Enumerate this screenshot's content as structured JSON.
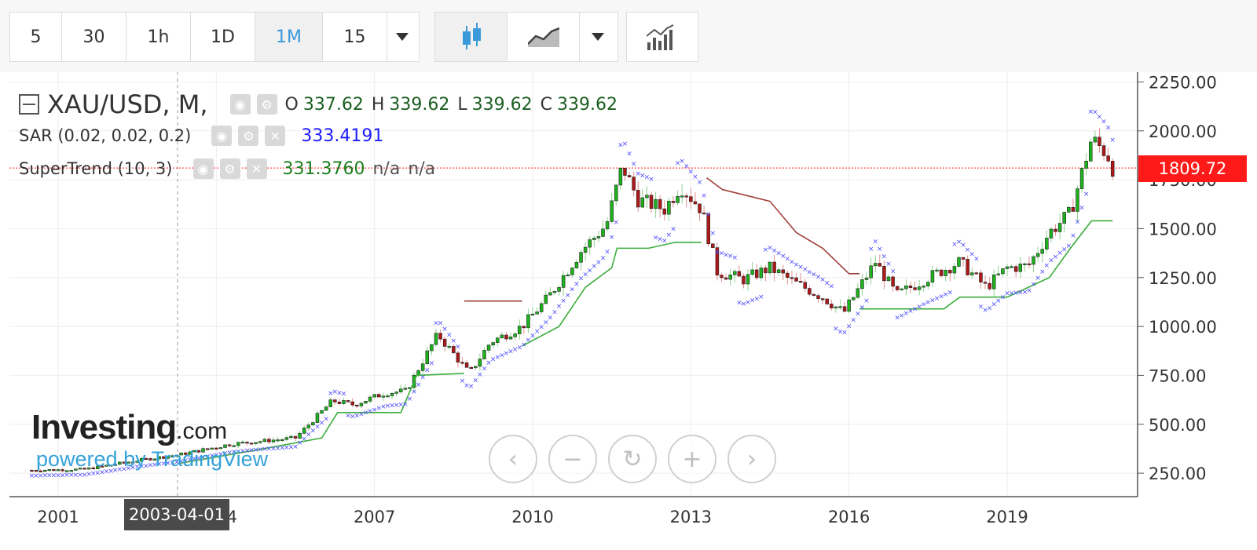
{
  "toolbar": {
    "intervals": [
      "5",
      "30",
      "1h",
      "1D",
      "1M",
      "15"
    ],
    "active_interval": "1M"
  },
  "legend": {
    "symbol": "XAU/USD, M,",
    "o_label": "O",
    "o": "337.62",
    "h_label": "H",
    "h": "339.62",
    "l_label": "L",
    "l": "339.62",
    "c_label": "C",
    "c": "339.62",
    "sar_label": "SAR (0.02, 0.02, 0.2)",
    "sar_value": "333.4191",
    "st_label": "SuperTrend (10, 3)",
    "st_value": "331.3760",
    "st_na1": "n/a",
    "st_na2": "n/a"
  },
  "brand": {
    "name": "Investing",
    "com": ".com",
    "powered": "powered by TradingView"
  },
  "crosshair_date": "2003-04-01",
  "price_tag": "1809.72",
  "colors": {
    "up": "#1db31d",
    "down": "#b01818",
    "sar": "#4a4aff",
    "st_up": "#3cae3c",
    "st_down": "#a0403a",
    "price_line": "#ff1a1a"
  },
  "chart_data": {
    "type": "candlestick",
    "symbol": "XAU/USD",
    "interval": "M",
    "x_ticks": [
      "2001",
      "2004",
      "2007",
      "2010",
      "2013",
      "2016",
      "2019"
    ],
    "y_ticks": [
      "250.00",
      "500.00",
      "750.00",
      "1000.00",
      "1250.00",
      "1500.00",
      "1750.00",
      "2000.00",
      "2250.00"
    ],
    "ylim": [
      130,
      2300
    ],
    "xlim": [
      2000.5,
      2021.5
    ],
    "anchors": [
      [
        2000.5,
        265
      ],
      [
        2001.5,
        270
      ],
      [
        2002.5,
        315
      ],
      [
        2003.3,
        345
      ],
      [
        2004.3,
        400
      ],
      [
        2005.5,
        430
      ],
      [
        2006.2,
        620
      ],
      [
        2006.6,
        600
      ],
      [
        2007.2,
        660
      ],
      [
        2007.6,
        670
      ],
      [
        2008.2,
        960
      ],
      [
        2008.8,
        760
      ],
      [
        2009.2,
        920
      ],
      [
        2009.8,
        1000
      ],
      [
        2010.3,
        1150
      ],
      [
        2010.9,
        1380
      ],
      [
        2011.4,
        1520
      ],
      [
        2011.7,
        1820
      ],
      [
        2012.0,
        1650
      ],
      [
        2012.5,
        1600
      ],
      [
        2012.8,
        1720
      ],
      [
        2013.2,
        1600
      ],
      [
        2013.5,
        1280
      ],
      [
        2014.0,
        1240
      ],
      [
        2014.5,
        1300
      ],
      [
        2015.0,
        1220
      ],
      [
        2015.5,
        1150
      ],
      [
        2015.9,
        1070
      ],
      [
        2016.5,
        1330
      ],
      [
        2016.9,
        1160
      ],
      [
        2017.5,
        1250
      ],
      [
        2018.1,
        1330
      ],
      [
        2018.6,
        1200
      ],
      [
        2019.0,
        1300
      ],
      [
        2019.4,
        1310
      ],
      [
        2019.8,
        1480
      ],
      [
        2020.2,
        1580
      ],
      [
        2020.6,
        1960
      ],
      [
        2020.9,
        1880
      ],
      [
        2021.0,
        1810
      ]
    ],
    "supertrend_up": [
      [
        2003.3,
        300
      ],
      [
        2005.0,
        380
      ],
      [
        2006.0,
        430
      ],
      [
        2006.3,
        560
      ],
      [
        2007.5,
        560
      ],
      [
        2007.8,
        750
      ],
      [
        2008.7,
        760
      ]
    ],
    "supertrend_down": [
      [
        2008.7,
        1130
      ],
      [
        2009.8,
        1130
      ]
    ],
    "supertrend_up2": [
      [
        2009.8,
        900
      ],
      [
        2010.5,
        1000
      ],
      [
        2011.0,
        1200
      ],
      [
        2011.5,
        1300
      ],
      [
        2011.6,
        1400
      ],
      [
        2012.2,
        1400
      ],
      [
        2012.7,
        1430
      ],
      [
        2013.2,
        1430
      ]
    ],
    "supertrend_down2": [
      [
        2013.3,
        1760
      ],
      [
        2013.6,
        1700
      ],
      [
        2014.5,
        1640
      ],
      [
        2015.0,
        1480
      ],
      [
        2015.5,
        1400
      ],
      [
        2016.0,
        1270
      ],
      [
        2016.2,
        1270
      ]
    ],
    "supertrend_up3": [
      [
        2016.2,
        1090
      ],
      [
        2016.8,
        1090
      ],
      [
        2017.8,
        1090
      ],
      [
        2018.1,
        1150
      ],
      [
        2019.0,
        1150
      ],
      [
        2019.4,
        1200
      ],
      [
        2019.8,
        1250
      ],
      [
        2020.2,
        1400
      ],
      [
        2020.6,
        1540
      ],
      [
        2021.0,
        1540
      ]
    ],
    "price_line": 1810
  }
}
